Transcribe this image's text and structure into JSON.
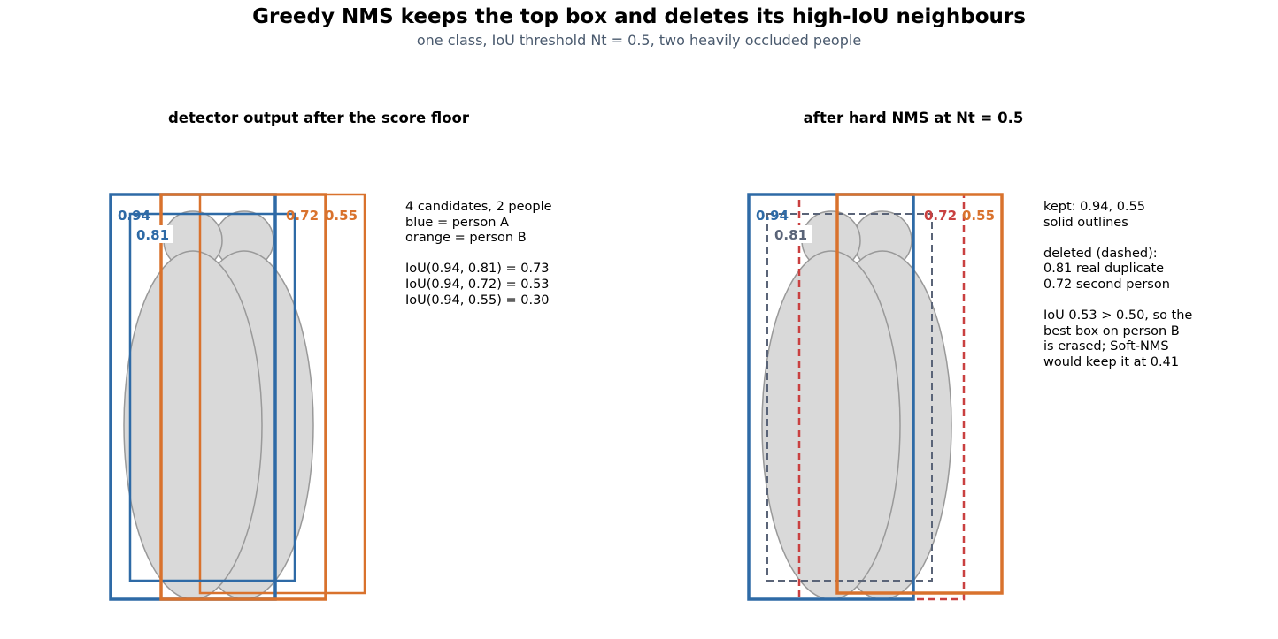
{
  "title": "Greedy NMS keeps the top box and deletes its high-IoU neighbours",
  "subtitle": "one class, IoU threshold Nt = 0.5, two heavily occluded people",
  "colors": {
    "person_a": "#2e6aa6",
    "person_b": "#d9722d",
    "deleted_duplicate": "#5a6478",
    "deleted_second_person": "#c94040",
    "silhouette_fill": "#d9d9d9",
    "silhouette_stroke": "#999999"
  },
  "left_panel": {
    "title": "detector output after the score floor",
    "notes": [
      "4 candidates, 2 people",
      "blue = person A",
      "orange = person B",
      "",
      "IoU(0.94, 0.81) = 0.73",
      "IoU(0.94, 0.72) = 0.53",
      "IoU(0.94, 0.55) = 0.30"
    ],
    "boxes": [
      {
        "score": "0.94",
        "person": "A",
        "status": "candidate"
      },
      {
        "score": "0.81",
        "person": "A",
        "status": "candidate"
      },
      {
        "score": "0.72",
        "person": "B",
        "status": "candidate"
      },
      {
        "score": "0.55",
        "person": "B",
        "status": "candidate"
      }
    ]
  },
  "right_panel": {
    "title": "after hard NMS at Nt = 0.5",
    "notes": [
      "kept: 0.94, 0.55",
      "solid outlines",
      "",
      "deleted (dashed):",
      "0.81 real duplicate",
      "0.72 second person",
      "",
      "IoU 0.53 > 0.50, so the",
      "best box on person B",
      "is erased; Soft-NMS",
      "would keep it at 0.41"
    ],
    "boxes": [
      {
        "score": "0.94",
        "person": "A",
        "status": "kept"
      },
      {
        "score": "0.81",
        "person": "A",
        "status": "deleted"
      },
      {
        "score": "0.72",
        "person": "B",
        "status": "deleted"
      },
      {
        "score": "0.55",
        "person": "B",
        "status": "kept"
      }
    ]
  }
}
